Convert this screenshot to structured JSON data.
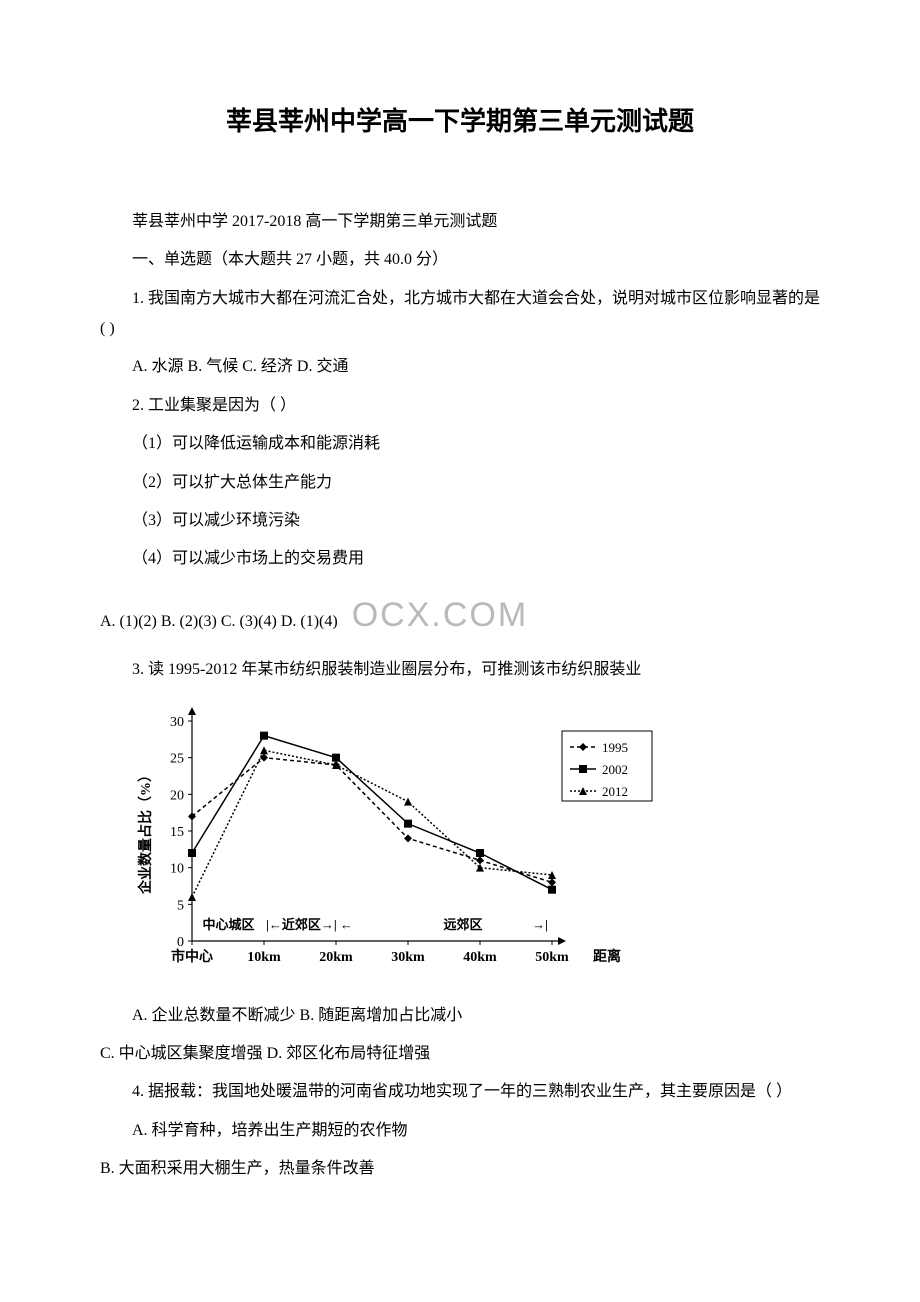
{
  "title": "莘县莘州中学高一下学期第三单元测试题",
  "subtitle": "莘县莘州中学 2017-2018 高一下学期第三单元测试题",
  "section_header": "一、单选题（本大题共 27 小题，共 40.0 分）",
  "q1": {
    "stem": "1.    我国南方大城市大都在河流汇合处，北方城市大都在大道会合处，说明对城市区位影响显著的是(    )",
    "options": "A.  水源 B.  气候 C.  经济 D.  交通"
  },
  "q2": {
    "stem": "2. 工业集聚是因为（    ）",
    "opt1": "（1）可以降低运输成本和能源消耗",
    "opt2": "（2）可以扩大总体生产能力",
    "opt3": "（3）可以减少环境污染",
    "opt4": "（4）可以减少市场上的交易费用",
    "options": "A. (1)(2) B. (2)(3) C. (3)(4) D. (1)(4)"
  },
  "watermark_text": "OCX.COM",
  "q3": {
    "stem": "3. 读 1995-2012 年某市纺织服装制造业圈层分布，可推测该市纺织服装业",
    "options_a": "A. 企业总数量不断减少 B. 随距离增加占比减小",
    "options_c": "C. 中心城区集聚度增强 D. 郊区化布局特征增强"
  },
  "chart": {
    "type": "line",
    "y_label": "企业数量占比（%）",
    "x_label": "距离",
    "x_ticks": [
      "市中心",
      "10km",
      "20km",
      "30km",
      "40km",
      "50km"
    ],
    "y_ticks": [
      0,
      5,
      10,
      15,
      20,
      25,
      30
    ],
    "ylim": [
      0,
      30
    ],
    "region_labels": [
      "中心城区",
      "近郊区",
      "远郊区"
    ],
    "region_arrows_prefix": "|←",
    "region_arrows_suffix": "→|",
    "series": [
      {
        "name": "1995",
        "marker": "diamond",
        "dash": "4,3",
        "values": [
          17,
          25,
          24,
          14,
          11,
          8
        ]
      },
      {
        "name": "2002",
        "marker": "square",
        "dash": "none",
        "values": [
          12,
          28,
          25,
          16,
          12,
          7
        ]
      },
      {
        "name": "2012",
        "marker": "triangle",
        "dash": "2,2",
        "values": [
          6,
          26,
          24,
          19,
          10,
          9
        ]
      }
    ],
    "colors": {
      "line": "#000000",
      "axis": "#000000",
      "text": "#000000",
      "background": "#ffffff"
    },
    "line_width": 1.5,
    "marker_size": 8,
    "font_size": 14
  },
  "q4": {
    "stem": "4. 据报载：我国地处暖温带的河南省成功地实现了一年的三熟制农业生产，其主要原因是（    ）",
    "opt_a": "A. 科学育种，培养出生产期短的农作物",
    "opt_b": "B. 大面积采用大棚生产，热量条件改善"
  }
}
